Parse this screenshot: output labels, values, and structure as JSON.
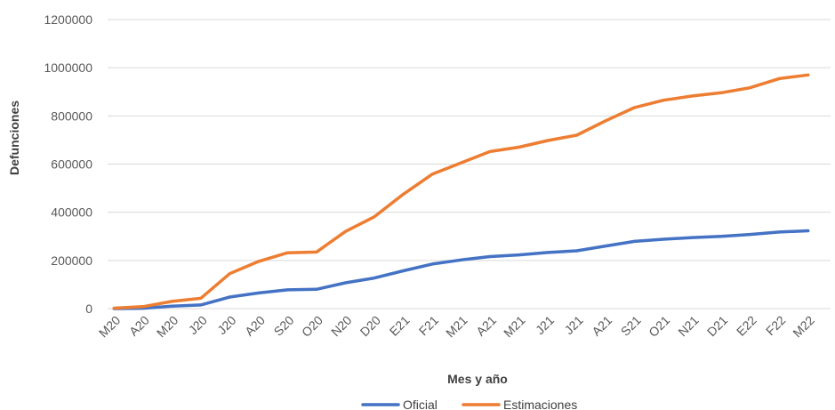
{
  "chart_data": {
    "type": "line",
    "title": "",
    "xlabel": "Mes y año",
    "ylabel": "Defunciones",
    "categories": [
      "M20",
      "A20",
      "M20",
      "J20",
      "J20",
      "A20",
      "S20",
      "O20",
      "N20",
      "D20",
      "E21",
      "F21",
      "M21",
      "A21",
      "M21",
      "J21",
      "J21",
      "A21",
      "S21",
      "O21",
      "N21",
      "D21",
      "E22",
      "F22",
      "M22"
    ],
    "ylim": [
      0,
      1200000
    ],
    "yticks": [
      0,
      200000,
      400000,
      600000,
      800000,
      1000000,
      1200000
    ],
    "ytick_labels": [
      "0",
      "200000",
      "400000",
      "600000",
      "800000",
      "1000000",
      "1200000"
    ],
    "grid": true,
    "legend_position": "bottom",
    "series": [
      {
        "name": "Oficial",
        "color": "#4472c4",
        "values": [
          0,
          1500,
          10000,
          15000,
          48000,
          65000,
          78000,
          80000,
          107000,
          127000,
          157000,
          185000,
          202000,
          216000,
          223000,
          233000,
          240000,
          260000,
          279000,
          288000,
          295000,
          300000,
          308000,
          318000,
          323000
        ]
      },
      {
        "name": "Estimaciones",
        "color": "#ed7d31",
        "values": [
          2000,
          8000,
          30000,
          43000,
          145000,
          196000,
          232000,
          235000,
          320000,
          381000,
          475000,
          558000,
          605000,
          652000,
          670000,
          698000,
          720000,
          780000,
          835000,
          865000,
          883000,
          896000,
          917000,
          955000,
          970000
        ]
      }
    ]
  }
}
